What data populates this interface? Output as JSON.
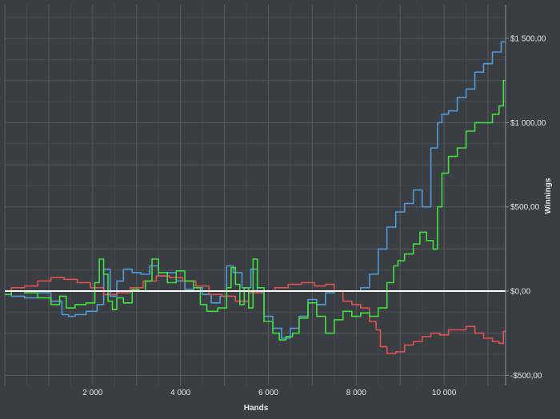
{
  "chart_data": {
    "type": "line",
    "title": "",
    "xlabel": "Hands",
    "ylabel": "Winnings",
    "xlim": [
      0,
      11400
    ],
    "ylim": [
      -560,
      1700
    ],
    "x_ticks": [
      2000,
      4000,
      6000,
      8000,
      10000
    ],
    "x_tick_labels": [
      "2 000",
      "4 000",
      "6 000",
      "8 000",
      "10 000"
    ],
    "y_ticks": [
      -500,
      0,
      500,
      1000,
      1500
    ],
    "y_tick_labels": [
      "-$500,00",
      "$0,00",
      "$500,00",
      "$1 000,00",
      "$1 500,00"
    ],
    "y_axis_side": "right",
    "grid": true,
    "zero_line": true,
    "legend": "none",
    "series": [
      {
        "color": "#4f9ad8",
        "x": [
          0,
          300,
          600,
          900,
          1200,
          1400,
          1500,
          1700,
          2000,
          2200,
          2300,
          2500,
          2600,
          2800,
          3000,
          3200,
          3400,
          3600,
          3800,
          4000,
          4200,
          4400,
          4600,
          4800,
          5000,
          5100,
          5300,
          5500,
          5700,
          5800,
          6000,
          6200,
          6400,
          6600,
          6800,
          7000,
          7200,
          7400,
          7600,
          7800,
          8000,
          8200,
          8400,
          8600,
          8800,
          9000,
          9200,
          9400,
          9600,
          9800,
          9900,
          10000,
          10200,
          10400,
          10600,
          10800,
          11000,
          11200,
          11400
        ],
        "y": [
          0,
          -30,
          -40,
          -10,
          -60,
          -140,
          -150,
          -140,
          -120,
          -80,
          130,
          -30,
          60,
          130,
          110,
          100,
          150,
          90,
          110,
          60,
          10,
          20,
          -20,
          -70,
          -30,
          150,
          110,
          20,
          130,
          -10,
          -150,
          -220,
          -280,
          -220,
          -150,
          -50,
          -80,
          -10,
          0,
          0,
          0,
          20,
          100,
          250,
          380,
          470,
          520,
          600,
          500,
          850,
          1000,
          1050,
          1070,
          1150,
          1200,
          1300,
          1350,
          1420,
          1480
        ]
      },
      {
        "color": "#e05252",
        "x": [
          0,
          300,
          600,
          900,
          1200,
          1500,
          1800,
          2100,
          2400,
          2700,
          3000,
          3300,
          3600,
          3900,
          4200,
          4500,
          4800,
          5100,
          5400,
          5700,
          6000,
          6300,
          6600,
          6900,
          7200,
          7400,
          7600,
          7800,
          8000,
          8200,
          8400,
          8500,
          8600,
          8800,
          9000,
          9200,
          9400,
          9600,
          9800,
          10000,
          10200,
          10400,
          10600,
          10800,
          11000,
          11200,
          11300,
          11400
        ],
        "y": [
          0,
          20,
          30,
          60,
          80,
          70,
          50,
          20,
          -20,
          -10,
          20,
          60,
          90,
          80,
          60,
          30,
          -20,
          -30,
          -60,
          -10,
          0,
          20,
          40,
          50,
          30,
          40,
          0,
          -60,
          -80,
          -100,
          -180,
          -230,
          -330,
          -370,
          -360,
          -320,
          -300,
          -270,
          -250,
          -260,
          -230,
          -230,
          -210,
          -250,
          -280,
          -300,
          -310,
          -240
        ]
      },
      {
        "color": "#40e040",
        "x": [
          0,
          300,
          600,
          900,
          1200,
          1300,
          1500,
          1700,
          2000,
          2100,
          2200,
          2300,
          2400,
          2500,
          2600,
          2800,
          3000,
          3100,
          3300,
          3400,
          3600,
          3800,
          4000,
          4200,
          4400,
          4500,
          4700,
          5000,
          5100,
          5200,
          5300,
          5400,
          5500,
          5600,
          5700,
          5800,
          6000,
          6200,
          6300,
          6500,
          6600,
          6800,
          7000,
          7200,
          7400,
          7600,
          7800,
          8000,
          8200,
          8400,
          8600,
          8800,
          8900,
          9000,
          9200,
          9400,
          9500,
          9700,
          9800,
          9900,
          10000,
          10200,
          10400,
          10600,
          10800,
          11000,
          11200,
          11300,
          11400
        ],
        "y": [
          -20,
          0,
          -10,
          -40,
          -80,
          -30,
          -100,
          -80,
          -70,
          50,
          190,
          100,
          -60,
          -110,
          -40,
          -70,
          10,
          0,
          60,
          190,
          110,
          50,
          120,
          60,
          20,
          -80,
          -120,
          -100,
          20,
          140,
          40,
          -80,
          20,
          -100,
          190,
          20,
          -180,
          -250,
          -290,
          -270,
          -250,
          -160,
          -70,
          -150,
          -250,
          -170,
          -120,
          -150,
          -130,
          -150,
          -100,
          50,
          150,
          180,
          220,
          280,
          350,
          300,
          250,
          500,
          700,
          800,
          850,
          950,
          1000,
          1000,
          1050,
          1100,
          1250
        ]
      }
    ]
  }
}
